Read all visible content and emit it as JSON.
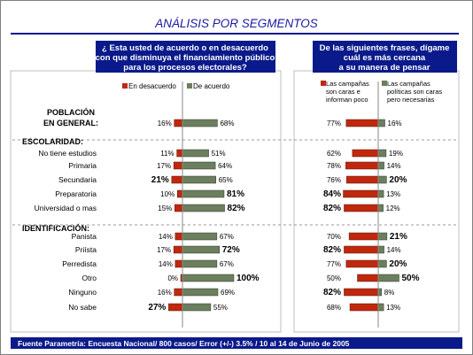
{
  "title": "ANÁLISIS POR SEGMENTOS",
  "left_panel": {
    "header": [
      "¿ Esta usted de acuerdo o en desacuerdo",
      "con que disminuya el financiamiento público",
      "para los procesos electorales?"
    ],
    "legend": [
      "En desacuerdo",
      "De acuerdo"
    ]
  },
  "right_panel": {
    "header": [
      "De las siguientes frases, dígame",
      "cuál es más cercana",
      "a su manera de pensar"
    ],
    "legend": [
      [
        "Las campañas",
        "son caras e",
        "informan poco"
      ],
      [
        "Las campañas",
        "políticas son caras",
        "pero necesarias"
      ]
    ]
  },
  "sections": [
    {
      "heading": [
        "POBLACIÓN",
        "EN GENERAL:"
      ]
    },
    {
      "heading": [
        "ESCOLARIDAD:"
      ]
    },
    {
      "heading": [
        "IDENTIFICACIÓN:"
      ]
    }
  ],
  "colors": {
    "title": "#1a1aa0",
    "header_bg": "#0b1a8a",
    "header_text": "#ffffff",
    "red": "#c0280e",
    "green": "#6b7e5e",
    "divider": "#888888"
  },
  "chart_data": [
    {
      "type": "bar",
      "title": "¿ Esta usted de acuerdo o en desacuerdo con que disminuya el financiamiento público para los procesos electorales?",
      "categories": [
        "POBLACIÓN EN GENERAL:",
        "No tiene estudios",
        "Primaria",
        "Secundaria",
        "Preparatoria",
        "Universidad o mas",
        "Panista",
        "Priísta",
        "Perredista",
        "Otro",
        "Ninguno",
        "No sabe"
      ],
      "series": [
        {
          "name": "En desacuerdo",
          "color": "#c0280e",
          "values": [
            16,
            11,
            17,
            21,
            10,
            15,
            14,
            17,
            14,
            0,
            16,
            27
          ],
          "labels": [
            "16%",
            "11%",
            "17%",
            "21%",
            "10%",
            "15%",
            "14%",
            "17%",
            "14%",
            "0%",
            "16%",
            "27%"
          ],
          "bold": [
            false,
            false,
            false,
            true,
            false,
            false,
            false,
            false,
            false,
            false,
            false,
            true
          ]
        },
        {
          "name": "De acuerdo",
          "color": "#6b7e5e",
          "values": [
            68,
            51,
            64,
            65,
            81,
            82,
            67,
            72,
            67,
            100,
            69,
            55
          ],
          "labels": [
            "68%",
            "51%",
            "64%",
            "65%",
            "81%",
            "82%",
            "67%",
            "72%",
            "67%",
            "100%",
            "69%",
            "55%"
          ],
          "bold": [
            false,
            false,
            false,
            false,
            true,
            true,
            false,
            true,
            false,
            true,
            false,
            false
          ]
        }
      ]
    },
    {
      "type": "bar",
      "title": "De las siguientes frases, dígame cuál es más cercana a su manera de pensar",
      "categories": [
        "POBLACIÓN EN GENERAL:",
        "No tiene estudios",
        "Primaria",
        "Secundaria",
        "Preparatoria",
        "Universidad o mas",
        "Panista",
        "Priísta",
        "Perredista",
        "Otro",
        "Ninguno",
        "No sabe"
      ],
      "series": [
        {
          "name": "Las campañas son caras e informan poco",
          "color": "#c0280e",
          "values": [
            77,
            62,
            78,
            76,
            84,
            82,
            70,
            82,
            77,
            50,
            82,
            68
          ],
          "labels": [
            "77%",
            "62%",
            "78%",
            "76%",
            "84%",
            "82%",
            "70%",
            "82%",
            "77%",
            "50%",
            "82%",
            "68%"
          ],
          "bold": [
            false,
            false,
            false,
            false,
            true,
            true,
            false,
            true,
            false,
            false,
            true,
            false
          ]
        },
        {
          "name": "Las campañas políticas son caras pero necesarias",
          "color": "#6b7e5e",
          "values": [
            16,
            19,
            14,
            20,
            13,
            12,
            21,
            14,
            20,
            50,
            8,
            13
          ],
          "labels": [
            "16%",
            "19%",
            "14%",
            "20%",
            "13%",
            "12%",
            "21%",
            "14%",
            "20%",
            "50%",
            "8%",
            "13%"
          ],
          "bold": [
            false,
            false,
            false,
            true,
            false,
            false,
            true,
            false,
            true,
            true,
            false,
            false
          ]
        }
      ]
    }
  ],
  "footer": "Fuente Parametría: Encuesta Nacional/ 800 casos/ Error  (+/-)  3.5% / 10 al 14 de Junio de 2005"
}
